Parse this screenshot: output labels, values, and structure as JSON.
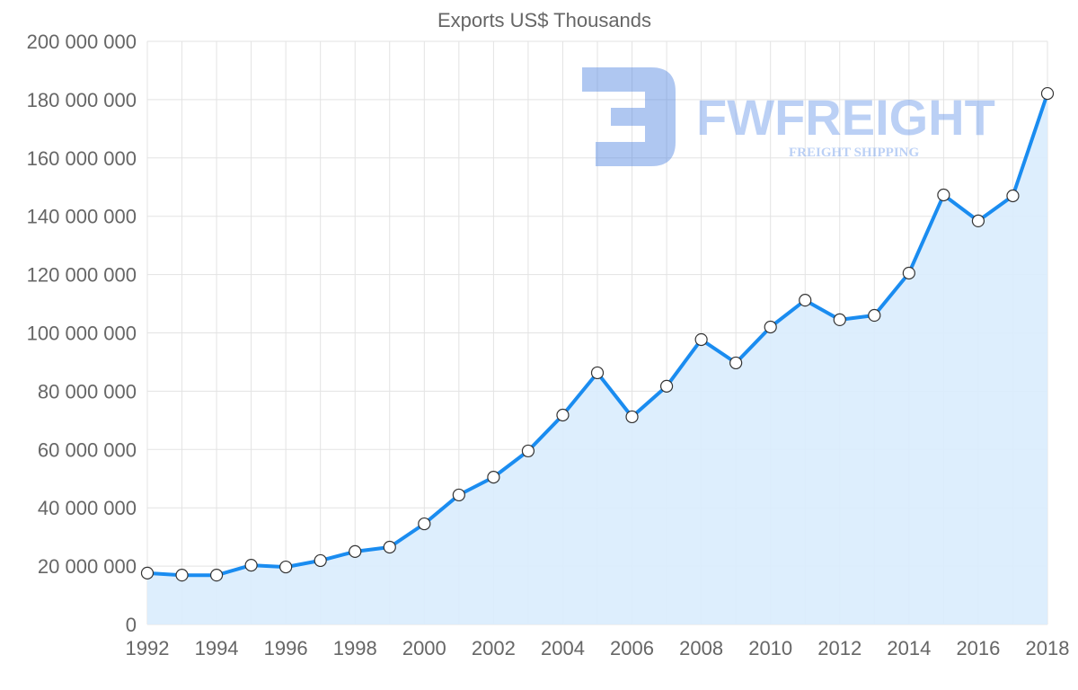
{
  "chart_data": {
    "type": "area",
    "title": "Exports US$ Thousands",
    "xlabel": "",
    "ylabel": "",
    "x": [
      1992,
      1993,
      1994,
      1995,
      1996,
      1997,
      1998,
      1999,
      2000,
      2001,
      2002,
      2003,
      2004,
      2005,
      2006,
      2007,
      2008,
      2009,
      2010,
      2011,
      2012,
      2013,
      2014,
      2015,
      2016,
      2017,
      2018
    ],
    "values": [
      17600000,
      16900000,
      16900000,
      20300000,
      19700000,
      21900000,
      25000000,
      26500000,
      34500000,
      44400000,
      50500000,
      59500000,
      71800000,
      86300000,
      71200000,
      81700000,
      97700000,
      89700000,
      102000000,
      111200000,
      104500000,
      106000000,
      120500000,
      147300000,
      138400000,
      147000000,
      182100000
    ],
    "xlim": [
      1992,
      2018
    ],
    "ylim": [
      0,
      200000000
    ],
    "x_tick_labels": [
      "1992",
      "1994",
      "1996",
      "1998",
      "2000",
      "2002",
      "2004",
      "2006",
      "2008",
      "2010",
      "2012",
      "2014",
      "2016",
      "2018"
    ],
    "y_ticks": [
      0,
      20000000,
      40000000,
      60000000,
      80000000,
      100000000,
      120000000,
      140000000,
      160000000,
      180000000,
      200000000
    ],
    "y_tick_labels": [
      "0",
      "20 000 000",
      "40 000 000",
      "60 000 000",
      "80 000 000",
      "100 000 000",
      "120 000 000",
      "140 000 000",
      "160 000 000",
      "180 000 000",
      "200 000 000"
    ],
    "grid": true,
    "legend": "none",
    "colors": {
      "line": "#1a8cf0",
      "fill": "#d9ecfd",
      "grid": "#e3e3e3",
      "point_fill": "#ffffff",
      "point_stroke": "#333333"
    }
  },
  "watermark": {
    "brand": "FWFREIGHT",
    "tagline": "FREIGHT SHIPPING"
  }
}
